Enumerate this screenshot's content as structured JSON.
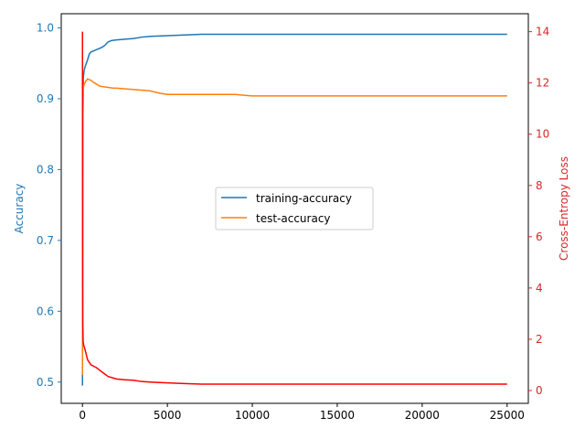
{
  "chart_data": {
    "type": "line",
    "title": "",
    "xlabel": "",
    "xlim": [
      -1250,
      26250
    ],
    "x_ticks": [
      "0",
      "5000",
      "10000",
      "15000",
      "20000",
      "25000"
    ],
    "x_tick_values": [
      0,
      5000,
      10000,
      15000,
      20000,
      25000
    ],
    "left_axis": {
      "label": "Accuracy",
      "color": "#1f77b4",
      "ylim": [
        0.47,
        1.02
      ],
      "ticks": [
        "0.5",
        "0.6",
        "0.7",
        "0.8",
        "0.9",
        "1.0"
      ],
      "tick_values": [
        0.5,
        0.6,
        0.7,
        0.8,
        0.9,
        1.0
      ]
    },
    "right_axis": {
      "label": "Cross-Entropy Loss",
      "color": "#d62728",
      "ylim": [
        -0.5,
        14.7
      ],
      "ticks": [
        "0",
        "2",
        "4",
        "6",
        "8",
        "10",
        "12",
        "14"
      ],
      "tick_values": [
        0,
        2,
        4,
        6,
        8,
        10,
        12,
        14
      ]
    },
    "legend": {
      "position": "center",
      "entries": [
        "training-accuracy",
        "test-accuracy"
      ]
    },
    "series": [
      {
        "name": "training-accuracy",
        "axis": "left",
        "color": "#1f77b4",
        "x": [
          0,
          10,
          20,
          50,
          100,
          150,
          200,
          300,
          400,
          500,
          700,
          900,
          1100,
          1300,
          1500,
          1700,
          2000,
          2500,
          3000,
          3500,
          4000,
          5000,
          6000,
          7000,
          10000,
          15000,
          20000,
          25000
        ],
        "y": [
          0.495,
          0.64,
          0.85,
          0.93,
          0.94,
          0.945,
          0.948,
          0.955,
          0.963,
          0.966,
          0.968,
          0.97,
          0.972,
          0.975,
          0.98,
          0.982,
          0.983,
          0.984,
          0.985,
          0.987,
          0.988,
          0.989,
          0.99,
          0.991,
          0.991,
          0.991,
          0.991,
          0.991
        ]
      },
      {
        "name": "test-accuracy",
        "axis": "left",
        "color": "#ff7f0e",
        "x": [
          0,
          10,
          20,
          50,
          100,
          200,
          300,
          400,
          500,
          600,
          800,
          1000,
          1200,
          1500,
          1800,
          2000,
          2500,
          3000,
          3500,
          4000,
          4500,
          5000,
          7000,
          9000,
          9500,
          10000,
          15000,
          20000,
          25000
        ],
        "y": [
          0.51,
          0.7,
          0.87,
          0.915,
          0.92,
          0.925,
          0.928,
          0.927,
          0.926,
          0.924,
          0.921,
          0.918,
          0.917,
          0.916,
          0.915,
          0.915,
          0.914,
          0.913,
          0.912,
          0.911,
          0.908,
          0.906,
          0.906,
          0.906,
          0.905,
          0.904,
          0.904,
          0.904,
          0.904
        ]
      },
      {
        "name": "",
        "axis": "right",
        "color": "#ff0000",
        "x": [
          0,
          5,
          10,
          20,
          40,
          80,
          150,
          300,
          500,
          800,
          1000,
          1200,
          1500,
          2000,
          2500,
          3000,
          3500,
          4000,
          5000,
          6000,
          7000,
          10000,
          15000,
          20000,
          25000
        ],
        "y": [
          14.0,
          10.0,
          5.0,
          2.6,
          1.9,
          1.75,
          1.6,
          1.2,
          1.0,
          0.9,
          0.8,
          0.7,
          0.55,
          0.45,
          0.42,
          0.4,
          0.35,
          0.33,
          0.3,
          0.27,
          0.25,
          0.25,
          0.25,
          0.25,
          0.25
        ]
      }
    ]
  }
}
